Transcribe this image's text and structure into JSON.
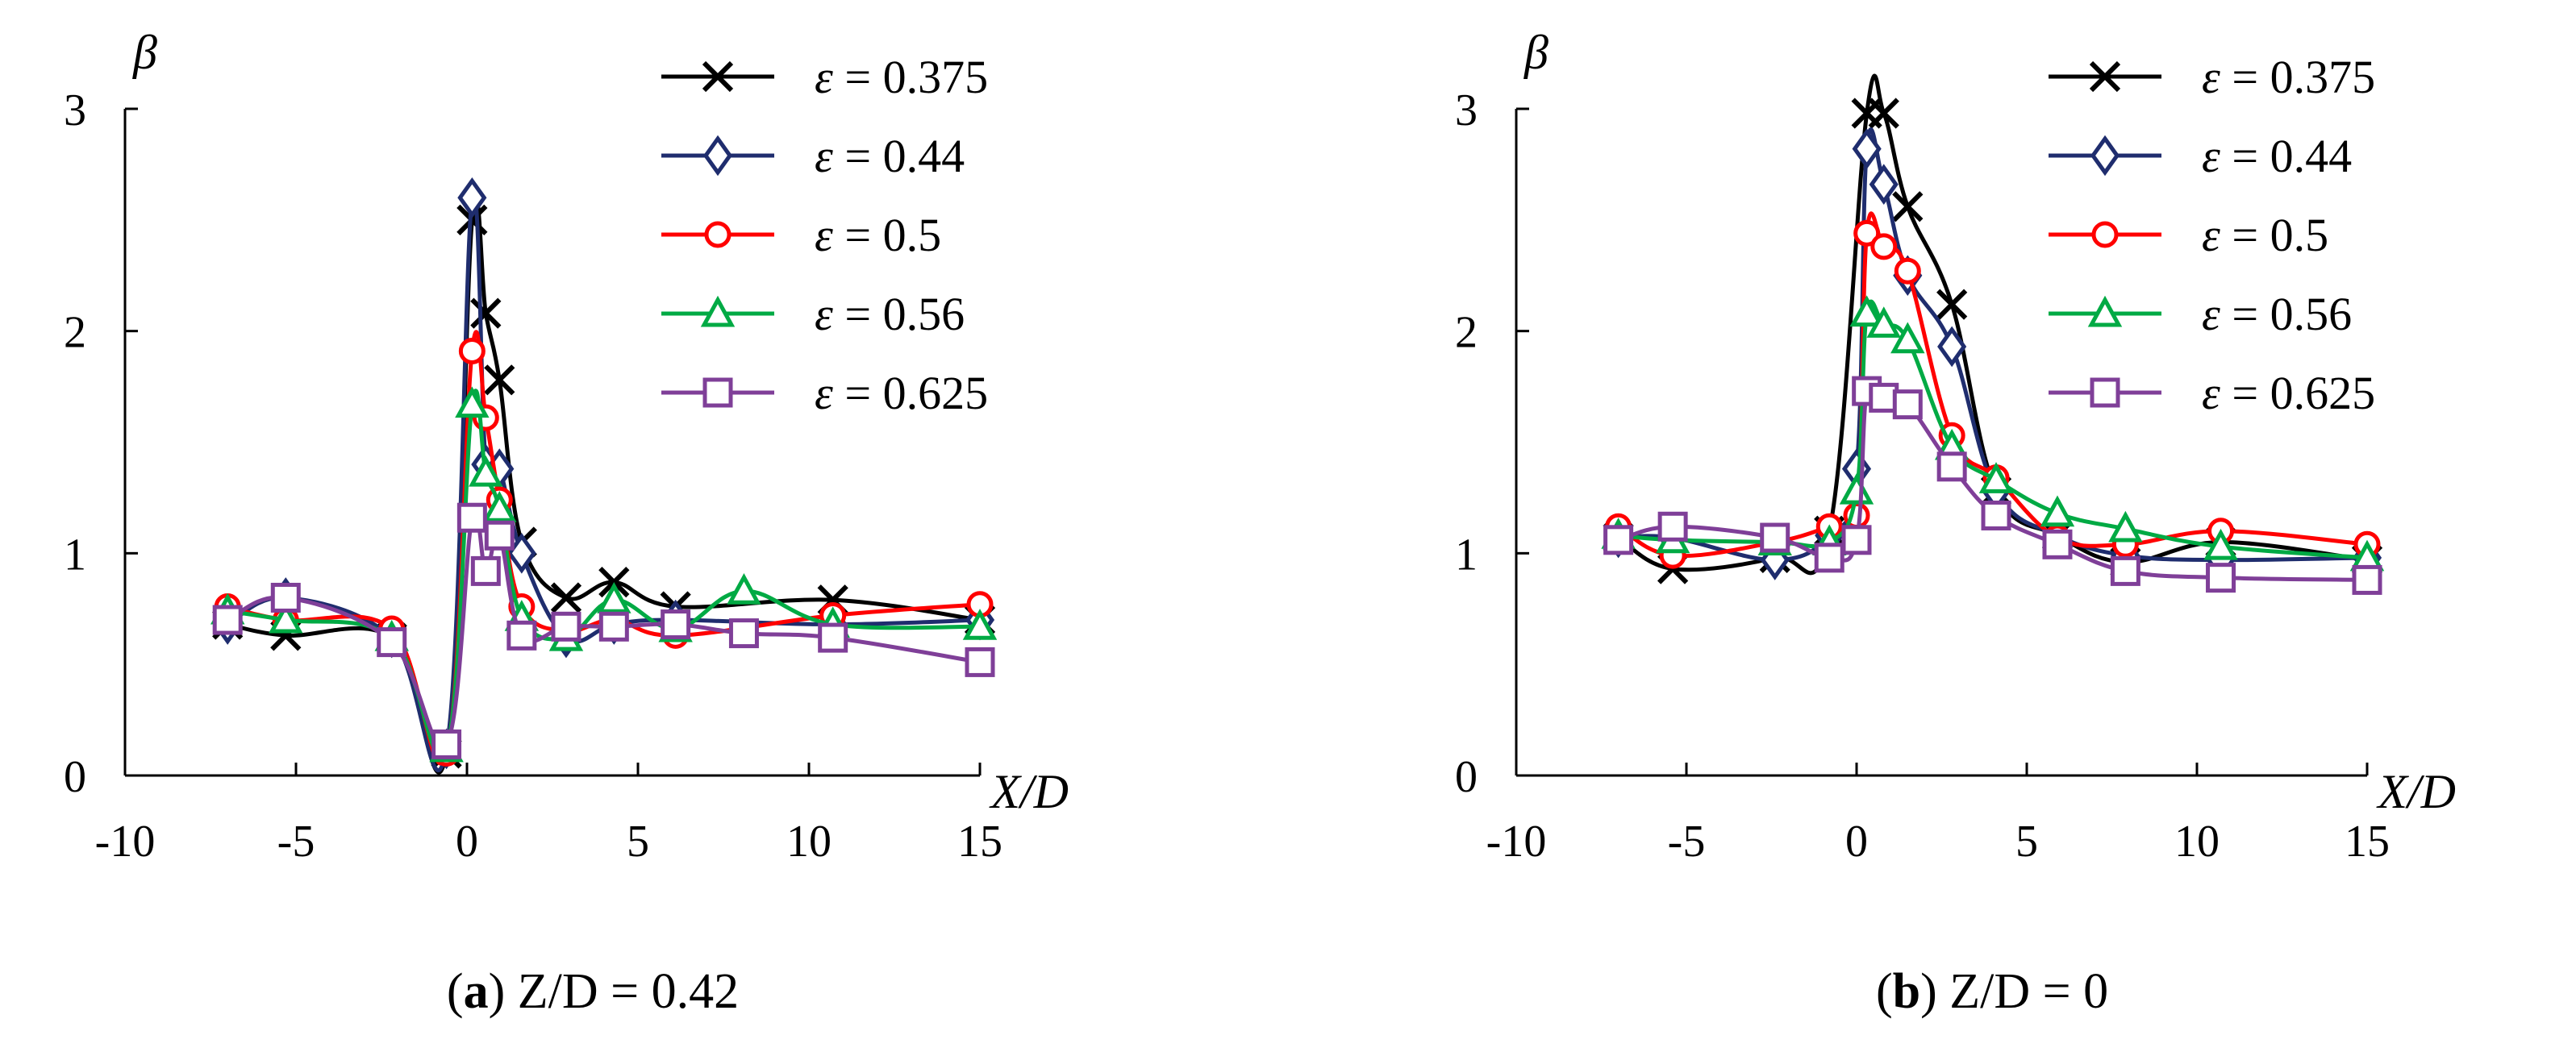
{
  "chart_data": [
    {
      "type": "line",
      "caption_letter": "a",
      "caption_prefix": "(",
      "caption_suffix": ") Z/D = 0.42",
      "xlabel": "X/D",
      "ylabel": "β",
      "xlim": [
        -10,
        15
      ],
      "ylim": [
        0,
        3
      ],
      "xticks": [
        "-10",
        "-5",
        "0",
        "5",
        "10",
        "15"
      ],
      "yticks": [
        "0",
        "1",
        "2",
        "3"
      ],
      "legend_position": "top-right",
      "grid": false,
      "series": [
        {
          "name": "ε = 0.375",
          "symbol": "ε",
          "label_rest": " = 0.375",
          "color": "#000000",
          "marker": "x",
          "x": [
            -7,
            -5.3,
            -2.2,
            -0.6,
            0.15,
            0.55,
            0.95,
            1.6,
            2.9,
            4.3,
            6.1,
            10.7,
            15
          ],
          "y": [
            0.68,
            0.63,
            0.62,
            0.1,
            2.5,
            2.08,
            1.78,
            1.05,
            0.8,
            0.87,
            0.76,
            0.79,
            0.7
          ]
        },
        {
          "name": "ε = 0.44",
          "symbol": "ε",
          "label_rest": " = 0.44",
          "color": "#1f2d6e",
          "marker": "diamond",
          "x": [
            -7,
            -5.3,
            -2.2,
            -0.6,
            0.15,
            0.55,
            0.95,
            1.6,
            2.9,
            4.3,
            6.1,
            10.7,
            15
          ],
          "y": [
            0.68,
            0.8,
            0.62,
            0.12,
            2.6,
            1.4,
            1.38,
            1.0,
            0.62,
            0.68,
            0.7,
            0.68,
            0.7
          ]
        },
        {
          "name": "ε = 0.5",
          "symbol": "ε",
          "label_rest": " = 0.5",
          "color": "#ff0000",
          "marker": "circle",
          "x": [
            -7,
            -5.3,
            -2.2,
            -0.6,
            0.15,
            0.55,
            0.95,
            1.6,
            2.9,
            4.3,
            6.1,
            10.7,
            15
          ],
          "y": [
            0.76,
            0.7,
            0.66,
            0.1,
            1.91,
            1.61,
            1.24,
            0.76,
            0.65,
            0.7,
            0.63,
            0.72,
            0.77
          ]
        },
        {
          "name": "ε = 0.56",
          "symbol": "ε",
          "label_rest": " = 0.56",
          "color": "#00aa44",
          "marker": "triangle",
          "x": [
            -7,
            -5.3,
            -2.2,
            -0.6,
            0.15,
            0.55,
            0.95,
            1.6,
            2.9,
            4.3,
            6.1,
            8.1,
            10.7,
            15
          ],
          "y": [
            0.74,
            0.7,
            0.62,
            0.12,
            1.67,
            1.36,
            1.2,
            0.71,
            0.62,
            0.79,
            0.66,
            0.83,
            0.68,
            0.67
          ]
        },
        {
          "name": "ε = 0.625",
          "symbol": "ε",
          "label_rest": " = 0.625",
          "color": "#7f3f98",
          "marker": "square",
          "x": [
            -7,
            -5.3,
            -2.2,
            -0.6,
            0.15,
            0.55,
            0.95,
            1.6,
            2.9,
            4.3,
            6.1,
            8.1,
            10.7,
            15
          ],
          "y": [
            0.7,
            0.8,
            0.6,
            0.14,
            1.16,
            0.92,
            1.08,
            0.63,
            0.67,
            0.67,
            0.68,
            0.64,
            0.62,
            0.51
          ]
        }
      ]
    },
    {
      "type": "line",
      "caption_letter": "b",
      "caption_prefix": "(",
      "caption_suffix": ") Z/D = 0",
      "xlabel": "X/D",
      "ylabel": "β",
      "xlim": [
        -10,
        15
      ],
      "ylim": [
        0,
        3
      ],
      "xticks": [
        "-10",
        "-5",
        "0",
        "5",
        "10",
        "15"
      ],
      "yticks": [
        "0",
        "1",
        "2",
        "3"
      ],
      "legend_position": "top-right",
      "grid": false,
      "series": [
        {
          "name": "ε = 0.375",
          "symbol": "ε",
          "label_rest": " = 0.375",
          "color": "#000000",
          "marker": "x",
          "x": [
            -7,
            -5.4,
            -2.4,
            -0.8,
            0.3,
            0.8,
            1.5,
            2.8,
            4.1,
            5.9,
            7.9,
            10.7,
            15
          ],
          "y": [
            1.07,
            0.93,
            0.98,
            1.1,
            2.98,
            2.98,
            2.56,
            2.12,
            1.28,
            1.08,
            0.96,
            1.05,
            0.97
          ]
        },
        {
          "name": "ε = 0.44",
          "symbol": "ε",
          "label_rest": " = 0.44",
          "color": "#1f2d6e",
          "marker": "diamond",
          "x": [
            -7,
            -5.4,
            -2.4,
            -0.8,
            0,
            0.3,
            0.8,
            1.5,
            2.8,
            4.1,
            5.9,
            7.9,
            10.7,
            15
          ],
          "y": [
            1.07,
            1.07,
            0.97,
            1.08,
            1.38,
            2.82,
            2.66,
            2.25,
            1.93,
            1.28,
            1.08,
            0.99,
            0.97,
            0.98
          ]
        },
        {
          "name": "ε = 0.5",
          "symbol": "ε",
          "label_rest": " = 0.5",
          "color": "#ff0000",
          "marker": "circle",
          "x": [
            -7,
            -5.4,
            -2.4,
            -0.8,
            0,
            0.3,
            0.8,
            1.5,
            2.8,
            4.1,
            5.9,
            7.9,
            10.7,
            15
          ],
          "y": [
            1.12,
            0.99,
            1.05,
            1.12,
            1.17,
            2.44,
            2.38,
            2.27,
            1.53,
            1.34,
            1.07,
            1.04,
            1.1,
            1.04
          ]
        },
        {
          "name": "ε = 0.56",
          "symbol": "ε",
          "label_rest": " = 0.56",
          "color": "#00aa44",
          "marker": "triangle",
          "x": [
            -7,
            -5.4,
            -2.4,
            -0.8,
            0,
            0.3,
            0.8,
            1.5,
            2.8,
            4.1,
            5.9,
            7.9,
            10.7,
            15
          ],
          "y": [
            1.08,
            1.06,
            1.05,
            1.05,
            1.28,
            2.08,
            2.03,
            1.96,
            1.48,
            1.33,
            1.18,
            1.11,
            1.03,
            0.98
          ]
        },
        {
          "name": "ε = 0.625",
          "symbol": "ε",
          "label_rest": " = 0.625",
          "color": "#7f3f98",
          "marker": "square",
          "x": [
            -7,
            -5.4,
            -2.4,
            -0.8,
            0,
            0.3,
            0.8,
            1.5,
            2.8,
            4.1,
            5.9,
            7.9,
            10.7,
            15
          ],
          "y": [
            1.06,
            1.12,
            1.07,
            0.98,
            1.06,
            1.73,
            1.7,
            1.67,
            1.39,
            1.17,
            1.04,
            0.92,
            0.89,
            0.88
          ]
        }
      ]
    }
  ]
}
